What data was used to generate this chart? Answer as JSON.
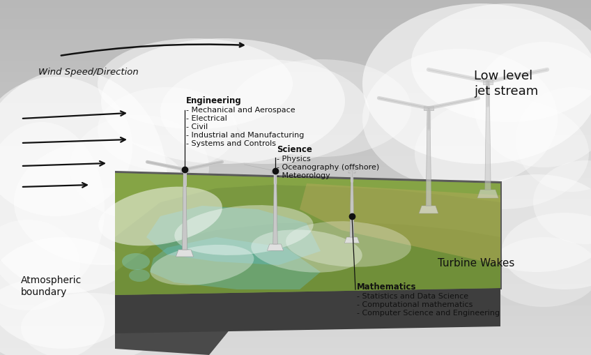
{
  "background_color": "#c8c8c8",
  "fig_width": 8.48,
  "fig_height": 5.09,
  "labels": {
    "wind_speed": "Wind Speed/Direction",
    "engineering": "Engineering",
    "engineering_items": [
      "- Mechanical and Aerospace",
      "- Electrical",
      "- Civil",
      "- Industrial and Manufacturing",
      "- Systems and Controls"
    ],
    "science": "Science",
    "science_items": [
      "- Physics",
      "- Oceanography (offshore)",
      "- Meteorology"
    ],
    "mathematics": "Mathematics",
    "mathematics_items": [
      "- Statistics and Data Science",
      "- Computational mathematics",
      "- Computer Science and Engineering"
    ],
    "low_level_jet": "Low level\njet stream",
    "atmospheric_boundary": "Atmospheric\nboundary",
    "turbine_wakes": "Turbine Wakes"
  },
  "text_dark": "#111111",
  "dot_color": "#111111",
  "arrow_color": "#111111",
  "turbine_color": "#c8c8c8",
  "turbine_stroke": "#aaaaaa",
  "platform_top": "#5a5a5a",
  "platform_left": "#4a4a4a",
  "platform_right": "#3e3e3e",
  "platform_bottom": "#2e2e2e",
  "terrain_base": "#7a9a40",
  "terrain_light": "#9ab850",
  "terrain_tan": "#b0a060",
  "water_teal": "#5aafaf"
}
